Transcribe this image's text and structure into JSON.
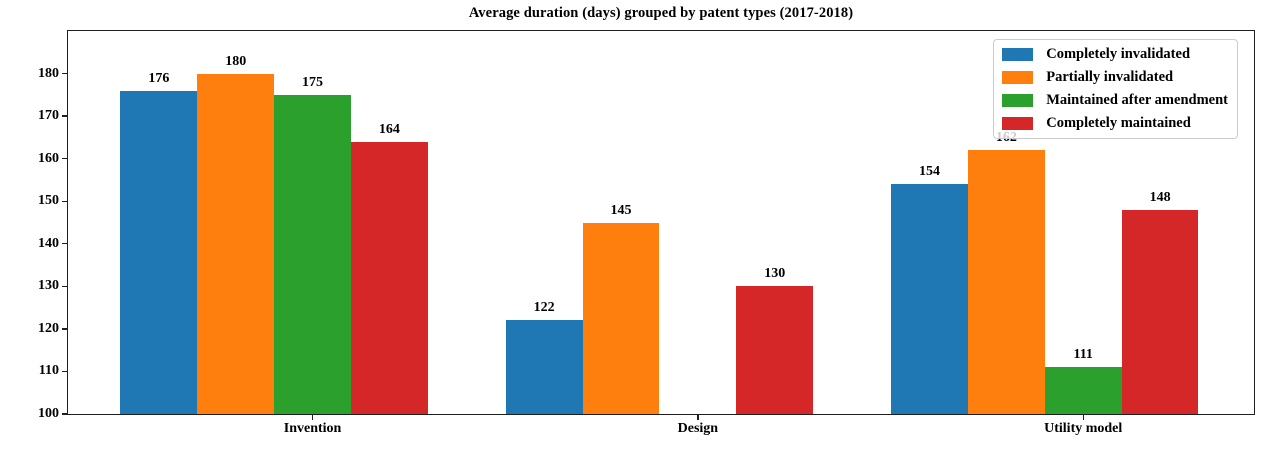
{
  "chart_data": {
    "type": "bar",
    "title": "Average duration (days) grouped by patent types (2017-2018)",
    "categories": [
      "Invention",
      "Design",
      "Utility model"
    ],
    "series": [
      {
        "name": "Completely invalidated",
        "color": "#1f77b4",
        "values": [
          176,
          122,
          154
        ]
      },
      {
        "name": "Partially invalidated",
        "color": "#ff7f0e",
        "values": [
          180,
          145,
          162
        ]
      },
      {
        "name": "Maintained after amendment",
        "color": "#2ca02c",
        "values": [
          175,
          null,
          111
        ]
      },
      {
        "name": "Completely maintained",
        "color": "#d62728",
        "values": [
          164,
          130,
          148
        ]
      }
    ],
    "ylim": [
      100,
      190
    ],
    "yticks": [
      100,
      110,
      120,
      130,
      140,
      150,
      160,
      170,
      180
    ],
    "xlabel": "",
    "ylabel": "",
    "grid": false,
    "legend_position": "upper right",
    "bar_value_labels": true
  }
}
